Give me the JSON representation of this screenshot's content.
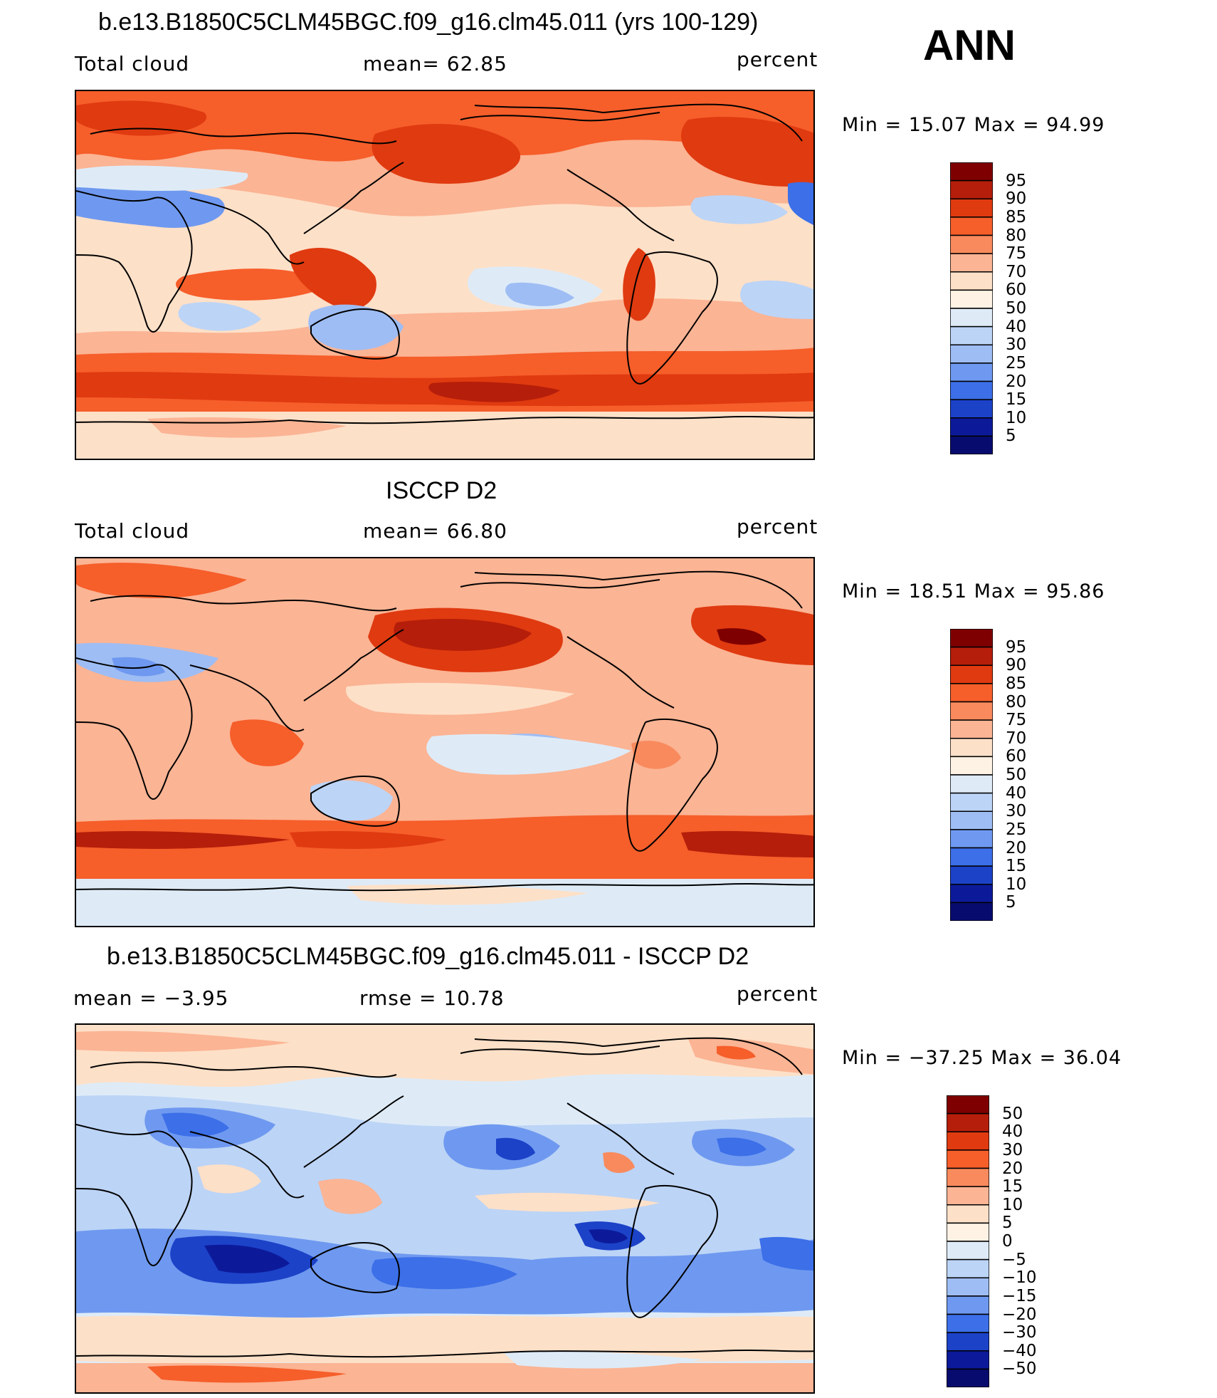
{
  "season": "ANN",
  "panels": [
    {
      "title": "b.e13.B1850C5CLM45BGC.f09_g16.clm45.011 (yrs 100-129)",
      "left_label": "Total cloud",
      "center_label": "mean=   62.85",
      "right_label": "percent",
      "minmax": "Min  =   15.07  Max  =   94.99",
      "colorbar_labels": [
        "95",
        "90",
        "85",
        "80",
        "75",
        "70",
        "60",
        "50",
        "40",
        "30",
        "25",
        "20",
        "15",
        "10",
        "5"
      ]
    },
    {
      "title": "ISCCP D2",
      "left_label": "Total cloud",
      "center_label": "mean=   66.80",
      "right_label": "percent",
      "minmax": "Min  =   18.51  Max  =   95.86",
      "colorbar_labels": [
        "95",
        "90",
        "85",
        "80",
        "75",
        "70",
        "60",
        "50",
        "40",
        "30",
        "25",
        "20",
        "15",
        "10",
        "5"
      ]
    },
    {
      "title": "b.e13.B1850C5CLM45BGC.f09_g16.clm45.011 - ISCCP D2",
      "left_label": "mean  =   −3.95",
      "center_label": "rmse  =   10.78",
      "right_label": "percent",
      "minmax": "Min  = −37.25  Max  =   36.04",
      "colorbar_labels": [
        "50",
        "40",
        "30",
        "20",
        "15",
        "10",
        "5",
        "0",
        "−5",
        "−10",
        "−15",
        "−20",
        "−30",
        "−40",
        "−50"
      ]
    }
  ],
  "colors": {
    "abs_scale": [
      "#7f0000",
      "#b51e0a",
      "#e03a10",
      "#f65e2a",
      "#f98a5d",
      "#fbb494",
      "#fde0c8",
      "#fdf2e4",
      "#deebf7",
      "#bcd4f6",
      "#9ebdf4",
      "#6f99f0",
      "#3c6fe8",
      "#1c42c8",
      "#0c1a9a",
      "#080b6e"
    ],
    "diff_scale": [
      "#7f0000",
      "#b51e0a",
      "#e03a10",
      "#f65e2a",
      "#f98a5d",
      "#fbb494",
      "#fde0c8",
      "#fdf2e4",
      "#deebf7",
      "#bcd4f6",
      "#9ebdf4",
      "#6f99f0",
      "#3c6fe8",
      "#1c42c8",
      "#0c1a9a",
      "#080b6e"
    ]
  }
}
